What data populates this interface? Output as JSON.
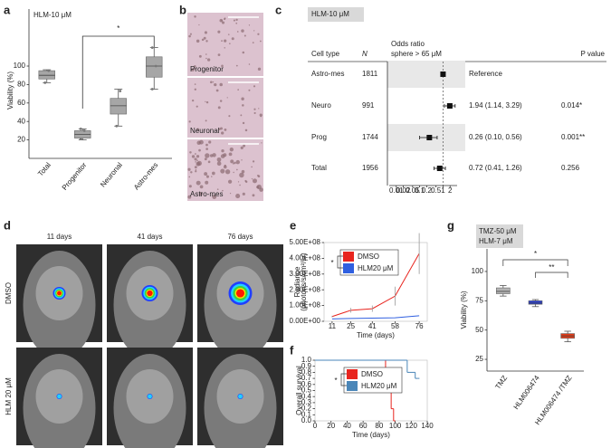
{
  "panel_labels": [
    "a",
    "b",
    "c",
    "d",
    "e",
    "f",
    "g"
  ],
  "micrographs": {
    "labels": [
      "Progenitor",
      "Neuronal",
      "Astro-mes"
    ]
  },
  "imaging": {
    "timepoints": [
      "11 days",
      "41 days",
      "76 days"
    ],
    "groups": [
      "DMSO",
      "HLM 20 μM"
    ],
    "group_colors": [
      "#2a8fd6",
      "#3a3a8c"
    ]
  },
  "chart_data": [
    {
      "type": "box",
      "title": "HLM-10 μM",
      "ylabel": "Viability (%)",
      "categories": [
        "Total",
        "Progenitor",
        "Neuronal",
        "Astro-mes"
      ],
      "boxes": [
        {
          "low": 82,
          "q1": 86,
          "median": 90,
          "q3": 95,
          "high": 96,
          "points": [
            82,
            95
          ]
        },
        {
          "low": 20,
          "q1": 22,
          "median": 26,
          "q3": 30,
          "high": 32,
          "points": [
            21,
            30,
            32
          ]
        },
        {
          "low": 35,
          "q1": 48,
          "median": 57,
          "q3": 65,
          "high": 75,
          "points": [
            35,
            73
          ]
        },
        {
          "low": 75,
          "q1": 88,
          "median": 100,
          "q3": 110,
          "high": 120,
          "points": [
            75,
            100,
            120
          ]
        }
      ],
      "color": "#a6a6a6",
      "ylim": [
        0,
        150
      ],
      "yticks": [
        20,
        40,
        60,
        80,
        100
      ],
      "significance": [
        "*"
      ]
    },
    {
      "type": "forest",
      "header": "HLM-10 μM",
      "columns": {
        "cell_type": "Cell type",
        "n": "N",
        "odds_ratio": [
          "Odds ratio",
          "sphere > 65 μM"
        ],
        "p_value": "P value"
      },
      "categories": [
        "Astro-mes",
        "Neuro",
        "Prog",
        "Total"
      ],
      "n": [
        1811,
        991,
        1744,
        1956
      ],
      "values": [
        1,
        1.94,
        0.26,
        0.72
      ],
      "ci_low": [
        null,
        1.14,
        0.1,
        0.41
      ],
      "ci_high": [
        null,
        3.29,
        0.56,
        1.26
      ],
      "estimates": [
        "Reference",
        "1.94 (1.14, 3.29)",
        "0.26 (0.10, 0.56)",
        "0.72 (0.41, 1.26)"
      ],
      "p_values": [
        null,
        "0.014*",
        "0.001**",
        "0.256"
      ],
      "colors": [
        "#2b3990",
        "#1e9b48",
        "#e5262b",
        "#111111"
      ],
      "xscale": "log",
      "xlim": [
        0.005,
        4
      ],
      "xticks": [
        0.01,
        0.02,
        0.05,
        0.1,
        0.2,
        0.5,
        1,
        2
      ],
      "reference_line": 1
    },
    {
      "type": "line",
      "ylabel": [
        "Radiance",
        "(photons/s/cm²/sr)"
      ],
      "xlabel": "Time (days)",
      "x": [
        11,
        25,
        41,
        58,
        76
      ],
      "series": [
        {
          "name": "DMSO",
          "color": "#e8251f",
          "values": [
            30000000,
            70000000,
            80000000,
            160000000,
            430000000
          ],
          "errors": [
            5000000,
            15000000,
            20000000,
            60000000,
            130000000
          ]
        },
        {
          "name": "HLM20 μM",
          "color": "#2f5fe0",
          "values": [
            15000000,
            18000000,
            20000000,
            22000000,
            35000000
          ]
        }
      ],
      "xlim": [
        5,
        82
      ],
      "xticks": [
        11,
        25,
        41,
        58,
        76
      ],
      "ylim": [
        0,
        500000000
      ],
      "yticks": [
        {
          "value": 0,
          "label": "0.00E+00"
        },
        {
          "value": 100000000,
          "label": "1.00E+08"
        },
        {
          "value": 200000000,
          "label": "2.00E+08"
        },
        {
          "value": 300000000,
          "label": "3.00E+08"
        },
        {
          "value": 400000000,
          "label": "4.00E+08"
        },
        {
          "value": 500000000,
          "label": "5.00E+08"
        }
      ],
      "significance": "*"
    },
    {
      "type": "step",
      "ylabel": "Overall survival",
      "xlabel": "Time (days)",
      "series": [
        {
          "name": "DMSO",
          "color": "#e8251f",
          "x": [
            0,
            88,
            92,
            95,
            98
          ],
          "values": [
            1,
            0.8,
            0.6,
            0.2,
            0
          ]
        },
        {
          "name": "HLM20 μM",
          "color": "#4a86b8",
          "x": [
            0,
            115,
            125,
            128
          ],
          "values": [
            1,
            0.8,
            0.7,
            0.7
          ]
        }
      ],
      "xlim": [
        0,
        140
      ],
      "xticks": [
        0,
        20,
        40,
        60,
        80,
        100,
        120,
        140
      ],
      "ylim": [
        0,
        1
      ],
      "yticks": [
        {
          "value": 0,
          "label": "0.0"
        },
        0.1,
        0.2,
        0.3,
        0.4,
        0.5,
        0.6,
        0.7,
        0.8,
        0.9,
        {
          "value": 1,
          "label": "1.0"
        }
      ],
      "significance": "*"
    },
    {
      "type": "box",
      "title": [
        "TMZ-50 μM",
        "HLM-7 μM"
      ],
      "ylabel": "Viability (%)",
      "categories": [
        "TMZ",
        "HLM006474",
        "HLM006474 /TMZ"
      ],
      "boxes": [
        {
          "low": 79,
          "q1": 81,
          "median": 83,
          "q3": 86,
          "high": 88
        },
        {
          "low": 70,
          "q1": 72,
          "median": 73,
          "q3": 75,
          "high": 76
        },
        {
          "low": 40,
          "q1": 43,
          "median": 45,
          "q3": 47,
          "high": 49
        }
      ],
      "colors": [
        "#b3b3b3",
        "#2a3fd4",
        "#e23b17"
      ],
      "ylim": [
        15,
        110
      ],
      "yticks": [
        25,
        50,
        75,
        100
      ],
      "significance": [
        "*",
        "**"
      ]
    }
  ]
}
